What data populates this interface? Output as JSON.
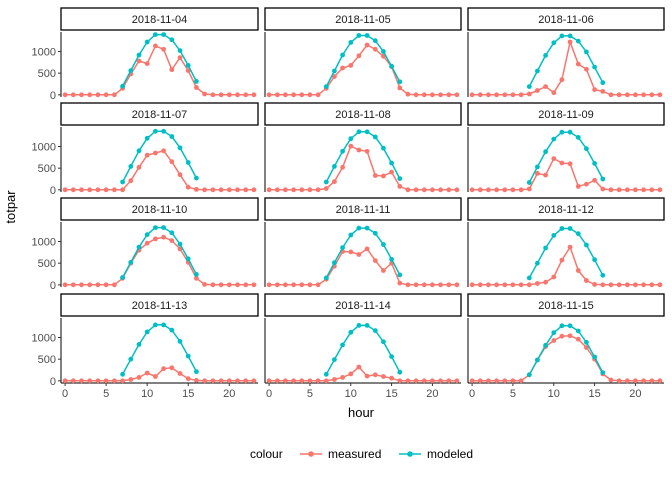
{
  "chart_data": {
    "type": "line",
    "facet_layout": {
      "rows": 4,
      "cols": 3
    },
    "xlabel": "hour",
    "ylabel": "totpar",
    "xlim": [
      -0.5,
      23.5
    ],
    "ylim": [
      -50,
      1450
    ],
    "xticks": [
      0,
      5,
      10,
      15,
      20
    ],
    "yticks": [
      0,
      500,
      1000
    ],
    "legend": {
      "title": "colour",
      "position": "bottom"
    },
    "series_styles": [
      {
        "name": "measured",
        "color": "#F8766D"
      },
      {
        "name": "modeled",
        "color": "#00BFC4"
      }
    ],
    "panels": [
      {
        "label": "2018-11-04",
        "measured": {
          "x": [
            0,
            1,
            2,
            3,
            4,
            5,
            6,
            7,
            8,
            9,
            10,
            11,
            12,
            13,
            14,
            15,
            16,
            17,
            18,
            19,
            20,
            21,
            22,
            23
          ],
          "y": [
            0,
            0,
            0,
            0,
            0,
            0,
            0,
            150,
            480,
            780,
            720,
            1130,
            1050,
            580,
            860,
            560,
            170,
            20,
            0,
            0,
            0,
            0,
            0,
            0
          ]
        },
        "modeled": {
          "x": [
            7,
            8,
            9,
            10,
            11,
            12,
            13,
            14,
            15,
            16
          ],
          "y": [
            200,
            560,
            920,
            1220,
            1390,
            1390,
            1270,
            1020,
            680,
            310
          ]
        }
      },
      {
        "label": "2018-11-05",
        "measured": {
          "x": [
            0,
            1,
            2,
            3,
            4,
            5,
            6,
            7,
            8,
            9,
            10,
            11,
            12,
            13,
            14,
            15,
            16,
            17,
            18,
            19,
            20,
            21,
            22,
            23
          ],
          "y": [
            0,
            0,
            0,
            0,
            0,
            0,
            0,
            150,
            420,
            620,
            680,
            900,
            1150,
            1050,
            890,
            650,
            160,
            15,
            0,
            0,
            0,
            0,
            0,
            0
          ]
        },
        "modeled": {
          "x": [
            7,
            8,
            9,
            10,
            11,
            12,
            13,
            14,
            15,
            16
          ],
          "y": [
            190,
            550,
            920,
            1210,
            1370,
            1370,
            1250,
            1000,
            660,
            300
          ]
        }
      },
      {
        "label": "2018-11-06",
        "measured": {
          "x": [
            0,
            1,
            2,
            3,
            4,
            5,
            6,
            7,
            8,
            9,
            10,
            11,
            12,
            13,
            14,
            15,
            16,
            17,
            18,
            19,
            20,
            21,
            22,
            23
          ],
          "y": [
            0,
            0,
            0,
            0,
            0,
            0,
            0,
            20,
            100,
            190,
            50,
            350,
            1220,
            710,
            590,
            120,
            80,
            0,
            0,
            0,
            0,
            0,
            0,
            0
          ]
        },
        "modeled": {
          "x": [
            7,
            8,
            9,
            10,
            11,
            12,
            13,
            14,
            15,
            16
          ],
          "y": [
            190,
            550,
            910,
            1200,
            1360,
            1360,
            1240,
            990,
            640,
            280
          ]
        }
      },
      {
        "label": "2018-11-07",
        "measured": {
          "x": [
            0,
            1,
            2,
            3,
            4,
            5,
            6,
            7,
            8,
            9,
            10,
            11,
            12,
            13,
            14,
            15,
            16,
            17,
            18,
            19,
            20,
            21,
            22,
            23
          ],
          "y": [
            0,
            0,
            0,
            0,
            0,
            0,
            0,
            0,
            210,
            520,
            800,
            850,
            900,
            650,
            350,
            60,
            10,
            0,
            0,
            0,
            0,
            0,
            0,
            0
          ]
        },
        "modeled": {
          "x": [
            7,
            8,
            9,
            10,
            11,
            12,
            13,
            14,
            15,
            16
          ],
          "y": [
            180,
            540,
            900,
            1190,
            1350,
            1350,
            1230,
            970,
            630,
            270
          ]
        }
      },
      {
        "label": "2018-11-08",
        "measured": {
          "x": [
            0,
            1,
            2,
            3,
            4,
            5,
            6,
            7,
            8,
            9,
            10,
            11,
            12,
            13,
            14,
            15,
            16,
            17,
            18,
            19,
            20,
            21,
            22,
            23
          ],
          "y": [
            0,
            0,
            0,
            0,
            0,
            0,
            0,
            30,
            190,
            520,
            1010,
            920,
            890,
            330,
            320,
            410,
            80,
            0,
            0,
            0,
            0,
            0,
            0,
            0
          ]
        },
        "modeled": {
          "x": [
            7,
            8,
            9,
            10,
            11,
            12,
            13,
            14,
            15,
            16
          ],
          "y": [
            180,
            540,
            890,
            1180,
            1340,
            1340,
            1220,
            960,
            620,
            260
          ]
        }
      },
      {
        "label": "2018-11-09",
        "measured": {
          "x": [
            0,
            1,
            2,
            3,
            4,
            5,
            6,
            7,
            8,
            9,
            10,
            11,
            12,
            13,
            14,
            15,
            16,
            17,
            18,
            19,
            20,
            21,
            22,
            23
          ],
          "y": [
            0,
            0,
            0,
            0,
            0,
            0,
            0,
            20,
            380,
            340,
            720,
            620,
            600,
            80,
            130,
            220,
            20,
            0,
            0,
            0,
            0,
            0,
            0,
            0
          ]
        },
        "modeled": {
          "x": [
            7,
            8,
            9,
            10,
            11,
            12,
            13,
            14,
            15,
            16
          ],
          "y": [
            170,
            530,
            880,
            1170,
            1330,
            1330,
            1210,
            950,
            610,
            250
          ]
        }
      },
      {
        "label": "2018-11-10",
        "measured": {
          "x": [
            0,
            1,
            2,
            3,
            4,
            5,
            6,
            7,
            8,
            9,
            10,
            11,
            12,
            13,
            14,
            15,
            16,
            17,
            18,
            19,
            20,
            21,
            22,
            23
          ],
          "y": [
            0,
            0,
            0,
            0,
            0,
            0,
            0,
            150,
            500,
            800,
            960,
            1060,
            1100,
            1020,
            830,
            520,
            150,
            10,
            0,
            0,
            0,
            0,
            0,
            0
          ]
        },
        "modeled": {
          "x": [
            7,
            8,
            9,
            10,
            11,
            12,
            13,
            14,
            15,
            16
          ],
          "y": [
            170,
            520,
            870,
            1160,
            1320,
            1320,
            1200,
            940,
            600,
            240
          ]
        }
      },
      {
        "label": "2018-11-11",
        "measured": {
          "x": [
            0,
            1,
            2,
            3,
            4,
            5,
            6,
            7,
            8,
            9,
            10,
            11,
            12,
            13,
            14,
            15,
            16,
            17,
            18,
            19,
            20,
            21,
            22,
            23
          ],
          "y": [
            0,
            0,
            0,
            0,
            0,
            0,
            0,
            130,
            430,
            770,
            760,
            700,
            830,
            560,
            330,
            500,
            40,
            0,
            0,
            0,
            0,
            0,
            0,
            0
          ]
        },
        "modeled": {
          "x": [
            7,
            8,
            9,
            10,
            11,
            12,
            13,
            14,
            15,
            16
          ],
          "y": [
            160,
            510,
            860,
            1150,
            1310,
            1310,
            1190,
            930,
            590,
            230
          ]
        }
      },
      {
        "label": "2018-11-12",
        "measured": {
          "x": [
            0,
            1,
            2,
            3,
            4,
            5,
            6,
            7,
            8,
            9,
            10,
            11,
            12,
            13,
            14,
            15,
            16,
            17,
            18,
            19,
            20,
            21,
            22,
            23
          ],
          "y": [
            0,
            0,
            0,
            0,
            0,
            0,
            0,
            0,
            30,
            60,
            180,
            570,
            870,
            330,
            100,
            10,
            0,
            0,
            0,
            0,
            0,
            0,
            0,
            0
          ]
        },
        "modeled": {
          "x": [
            7,
            8,
            9,
            10,
            11,
            12,
            13,
            14,
            15,
            16
          ],
          "y": [
            160,
            500,
            850,
            1140,
            1300,
            1300,
            1180,
            920,
            580,
            220
          ]
        }
      },
      {
        "label": "2018-11-13",
        "measured": {
          "x": [
            0,
            1,
            2,
            3,
            4,
            5,
            6,
            7,
            8,
            9,
            10,
            11,
            12,
            13,
            14,
            15,
            16,
            17,
            18,
            19,
            20,
            21,
            22,
            23
          ],
          "y": [
            0,
            0,
            0,
            0,
            0,
            0,
            0,
            0,
            30,
            80,
            180,
            100,
            280,
            300,
            170,
            50,
            10,
            0,
            0,
            0,
            0,
            0,
            0,
            0
          ]
        },
        "modeled": {
          "x": [
            7,
            8,
            9,
            10,
            11,
            12,
            13,
            14,
            15,
            16
          ],
          "y": [
            150,
            500,
            840,
            1130,
            1290,
            1290,
            1170,
            910,
            570,
            210
          ]
        }
      },
      {
        "label": "2018-11-14",
        "measured": {
          "x": [
            0,
            1,
            2,
            3,
            4,
            5,
            6,
            7,
            8,
            9,
            10,
            11,
            12,
            13,
            14,
            15,
            16,
            17,
            18,
            19,
            20,
            21,
            22,
            23
          ],
          "y": [
            0,
            0,
            0,
            0,
            0,
            0,
            0,
            0,
            30,
            80,
            160,
            320,
            110,
            140,
            100,
            60,
            0,
            0,
            0,
            0,
            0,
            0,
            0,
            0
          ]
        },
        "modeled": {
          "x": [
            7,
            8,
            9,
            10,
            11,
            12,
            13,
            14,
            15,
            16
          ],
          "y": [
            150,
            490,
            830,
            1120,
            1280,
            1280,
            1160,
            900,
            560,
            200
          ]
        }
      },
      {
        "label": "2018-11-15",
        "measured": {
          "x": [
            0,
            1,
            2,
            3,
            4,
            5,
            6,
            7,
            8,
            9,
            10,
            11,
            12,
            13,
            14,
            15,
            16,
            17,
            18,
            19,
            20,
            21,
            22,
            23
          ],
          "y": [
            0,
            0,
            0,
            0,
            0,
            0,
            0,
            140,
            480,
            790,
            930,
            1030,
            1040,
            960,
            770,
            500,
            160,
            20,
            0,
            0,
            0,
            0,
            0,
            0
          ]
        },
        "modeled": {
          "x": [
            7,
            8,
            9,
            10,
            11,
            12,
            13,
            14,
            15,
            16
          ],
          "y": [
            140,
            480,
            820,
            1110,
            1270,
            1270,
            1150,
            890,
            550,
            190
          ]
        }
      }
    ]
  }
}
